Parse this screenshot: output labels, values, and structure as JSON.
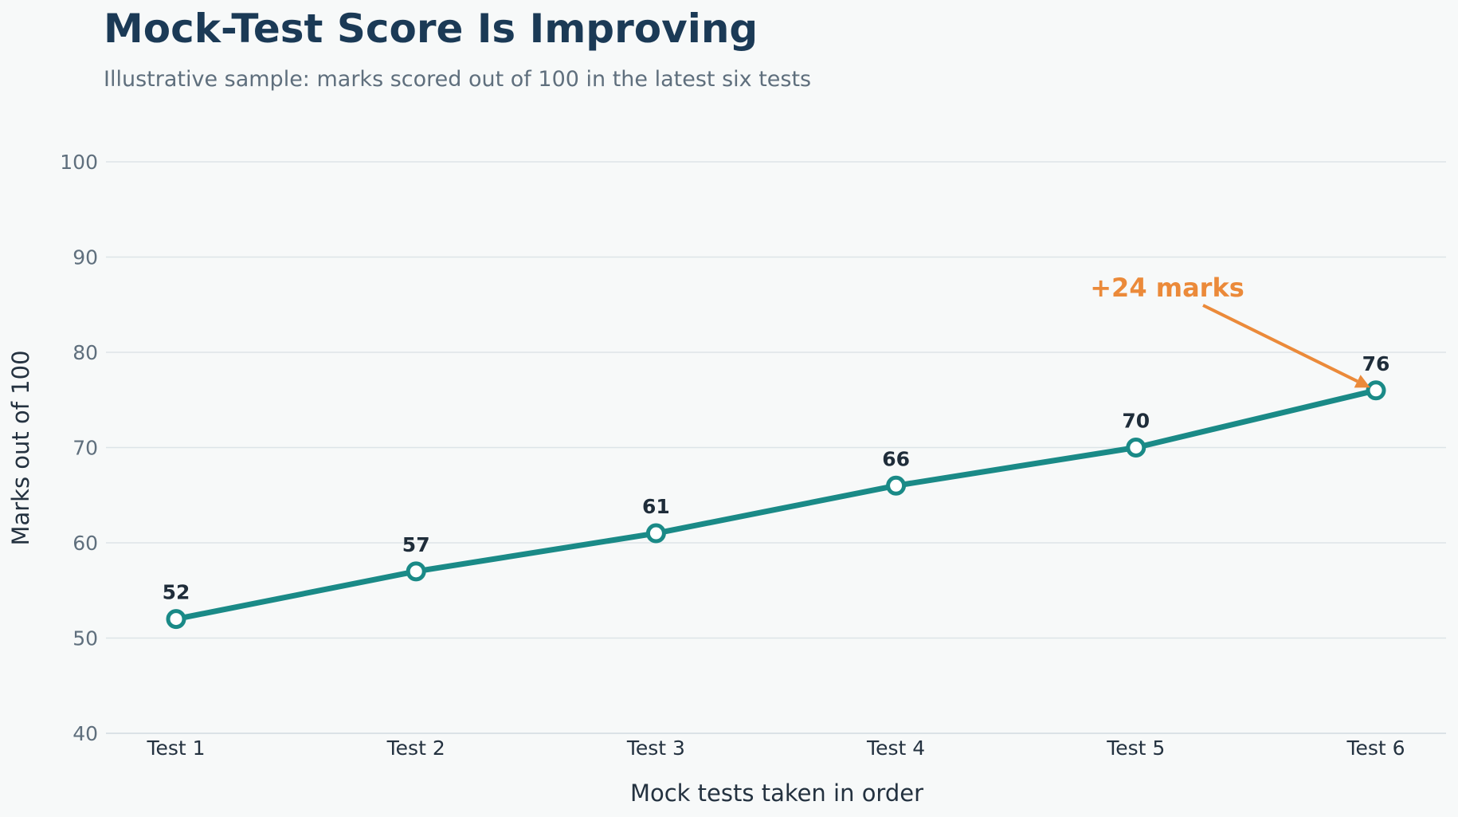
{
  "title": "Mock-Test Score Is Improving",
  "subtitle": "Illustrative sample: marks scored out of 100 in the latest six tests",
  "colors": {
    "line": "#1a8a87",
    "marker_fill": "#ffffff",
    "annotation": "#eb8a3a",
    "title": "#1b3a56"
  },
  "chart_data": {
    "type": "line",
    "categories": [
      "Test 1",
      "Test 2",
      "Test 3",
      "Test 4",
      "Test 5",
      "Test 6"
    ],
    "series": [
      {
        "values": [
          52,
          57,
          61,
          66,
          70,
          76
        ]
      }
    ],
    "xlabel": "Mock tests taken in order",
    "ylabel": "Marks out of 100",
    "ylim": [
      40,
      100
    ],
    "yticks": [
      40,
      50,
      60,
      70,
      80,
      90,
      100
    ],
    "grid": "horizontal",
    "data_labels": true,
    "annotation": {
      "text": "+24 marks",
      "target_category": "Test 6",
      "target_value": 76
    }
  }
}
